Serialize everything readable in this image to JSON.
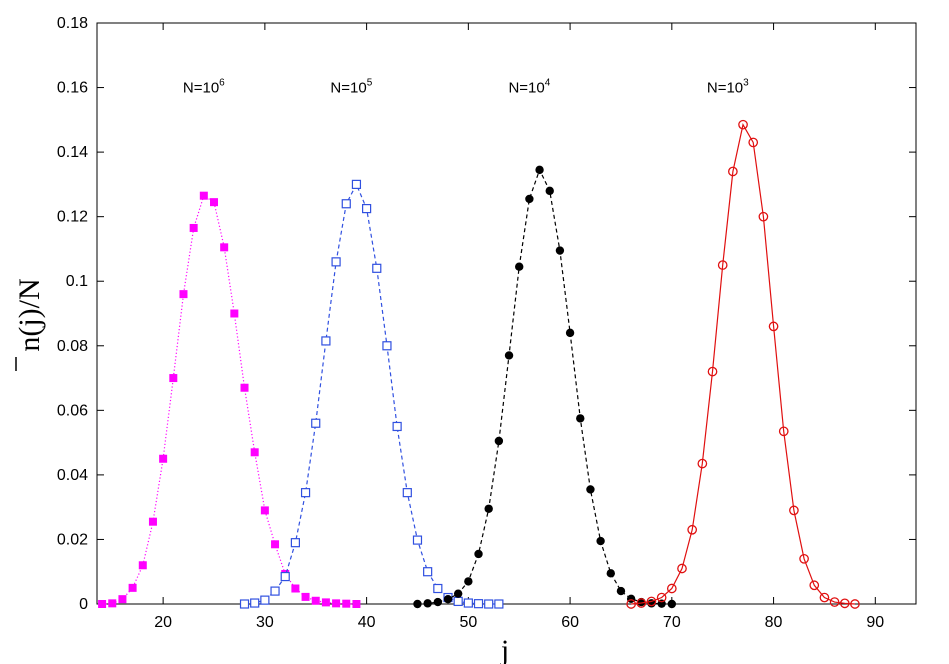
{
  "chart_data": {
    "type": "line",
    "title": "",
    "xlabel": "j",
    "ylabel": "n(j)/N",
    "ylabel_overbar_char": "n",
    "xlim": [
      13.5,
      94
    ],
    "ylim": [
      0,
      0.18
    ],
    "xticks": [
      20,
      30,
      40,
      50,
      60,
      70,
      80,
      90
    ],
    "yticks": [
      0,
      0.02,
      0.04,
      0.06,
      0.08,
      0.1,
      0.12,
      0.14,
      0.16,
      0.18
    ],
    "ytick_labels": [
      "0",
      "0.02",
      "0.04",
      "0.06",
      "0.08",
      "0.1",
      "0.12",
      "0.14",
      "0.16",
      "0.18"
    ],
    "grid": false,
    "annotations": [
      {
        "base": "N=10",
        "exp": "6",
        "x": 24,
        "y": 0.16
      },
      {
        "base": "N=10",
        "exp": "5",
        "x": 38.5,
        "y": 0.16
      },
      {
        "base": "N=10",
        "exp": "4",
        "x": 56,
        "y": 0.16
      },
      {
        "base": "N=10",
        "exp": "3",
        "x": 75.5,
        "y": 0.16
      }
    ],
    "series": [
      {
        "color": "#ff00ff",
        "marker": "filled-square",
        "line": "dotted",
        "x": [
          14,
          15,
          16,
          17,
          18,
          19,
          20,
          21,
          22,
          23,
          24,
          25,
          26,
          27,
          28,
          29,
          30,
          31,
          32,
          33,
          34,
          35,
          36,
          37,
          38,
          39
        ],
        "y": [
          0.0,
          0.0002,
          0.0015,
          0.005,
          0.012,
          0.0255,
          0.045,
          0.07,
          0.096,
          0.1165,
          0.1265,
          0.1245,
          0.1105,
          0.09,
          0.067,
          0.047,
          0.029,
          0.0185,
          0.0093,
          0.0048,
          0.0022,
          0.001,
          0.0005,
          0.0002,
          0.0001,
          0.0
        ]
      },
      {
        "color": "#3050e0",
        "marker": "open-square",
        "line": "dashed",
        "x": [
          28,
          29,
          30,
          31,
          32,
          33,
          34,
          35,
          36,
          37,
          38,
          39,
          40,
          41,
          42,
          43,
          44,
          45,
          46,
          47,
          48,
          49,
          50,
          51,
          52,
          53
        ],
        "y": [
          0.0,
          0.0003,
          0.0012,
          0.004,
          0.0085,
          0.019,
          0.0345,
          0.056,
          0.0815,
          0.106,
          0.124,
          0.13,
          0.1225,
          0.104,
          0.08,
          0.055,
          0.0345,
          0.0198,
          0.01,
          0.0048,
          0.002,
          0.0008,
          0.0003,
          0.0001,
          0.0,
          0.0
        ]
      },
      {
        "color": "#000000",
        "marker": "filled-circle",
        "line": "dashed",
        "x": [
          45,
          46,
          47,
          48,
          49,
          50,
          51,
          52,
          53,
          54,
          55,
          56,
          57,
          58,
          59,
          60,
          61,
          62,
          63,
          64,
          65,
          66,
          67,
          68,
          69,
          70
        ],
        "y": [
          0.0,
          0.0002,
          0.0006,
          0.0015,
          0.0032,
          0.007,
          0.0155,
          0.0295,
          0.0505,
          0.077,
          0.1045,
          0.1255,
          0.1345,
          0.128,
          0.1095,
          0.084,
          0.0575,
          0.0355,
          0.0195,
          0.0095,
          0.004,
          0.0016,
          0.0006,
          0.0002,
          0.0001,
          0.0
        ]
      },
      {
        "color": "#e01010",
        "marker": "open-circle",
        "line": "solid",
        "x": [
          66,
          67,
          68,
          69,
          70,
          71,
          72,
          73,
          74,
          75,
          76,
          77,
          78,
          79,
          80,
          81,
          82,
          83,
          84,
          85,
          86,
          87,
          88
        ],
        "y": [
          0.0,
          0.0003,
          0.0008,
          0.002,
          0.0048,
          0.011,
          0.023,
          0.0435,
          0.072,
          0.105,
          0.134,
          0.1485,
          0.143,
          0.12,
          0.086,
          0.0535,
          0.029,
          0.014,
          0.0058,
          0.002,
          0.0006,
          0.0002,
          0.0
        ]
      }
    ]
  }
}
